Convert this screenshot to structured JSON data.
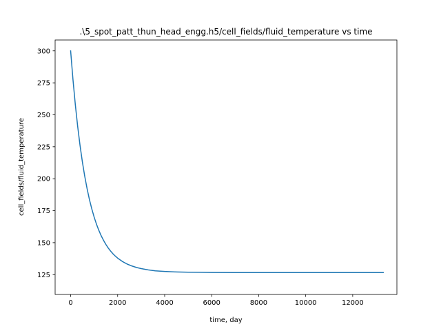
{
  "chart_data": {
    "type": "line",
    "title": ".\\5_spot_patt_thun_head_engg.h5/cell_fields/fluid_temperature vs time",
    "xlabel": "time, day",
    "ylabel": "cell_fields/fluid_temperature",
    "xlim": [
      -660,
      13880
    ],
    "ylim": [
      109.5,
      308.5
    ],
    "xticks": [
      0,
      2000,
      4000,
      6000,
      8000,
      10000,
      12000
    ],
    "xtick_labels": [
      "0",
      "2000",
      "4000",
      "6000",
      "8000",
      "10000",
      "12000"
    ],
    "yticks": [
      125,
      150,
      175,
      200,
      225,
      250,
      275,
      300
    ],
    "ytick_labels": [
      "125",
      "150",
      "175",
      "200",
      "225",
      "250",
      "275",
      "300"
    ],
    "grid": false,
    "series": [
      {
        "color": "#1f77b4",
        "x": [
          0,
          100,
          200,
          300,
          400,
          500,
          600,
          700,
          800,
          900,
          1000,
          1100,
          1200,
          1300,
          1400,
          1500,
          1600,
          1700,
          1800,
          1900,
          2000,
          2200,
          2400,
          2600,
          2800,
          3000,
          3300,
          3600,
          4000,
          4500,
          5000,
          5500,
          6000,
          7000,
          8000,
          9000,
          10000,
          11000,
          12000,
          13300
        ],
        "y": [
          300.0,
          277.4,
          257.8,
          240.8,
          226.0,
          213.1,
          201.9,
          192.2,
          183.7,
          176.4,
          170.0,
          164.4,
          159.6,
          155.4,
          151.8,
          148.6,
          145.8,
          143.4,
          141.3,
          139.5,
          137.9,
          135.3,
          133.3,
          131.8,
          130.6,
          129.7,
          128.7,
          128.0,
          127.5,
          127.1,
          126.9,
          126.8,
          126.7,
          126.6,
          126.6,
          126.6,
          126.6,
          126.6,
          126.6,
          126.6
        ]
      }
    ]
  }
}
